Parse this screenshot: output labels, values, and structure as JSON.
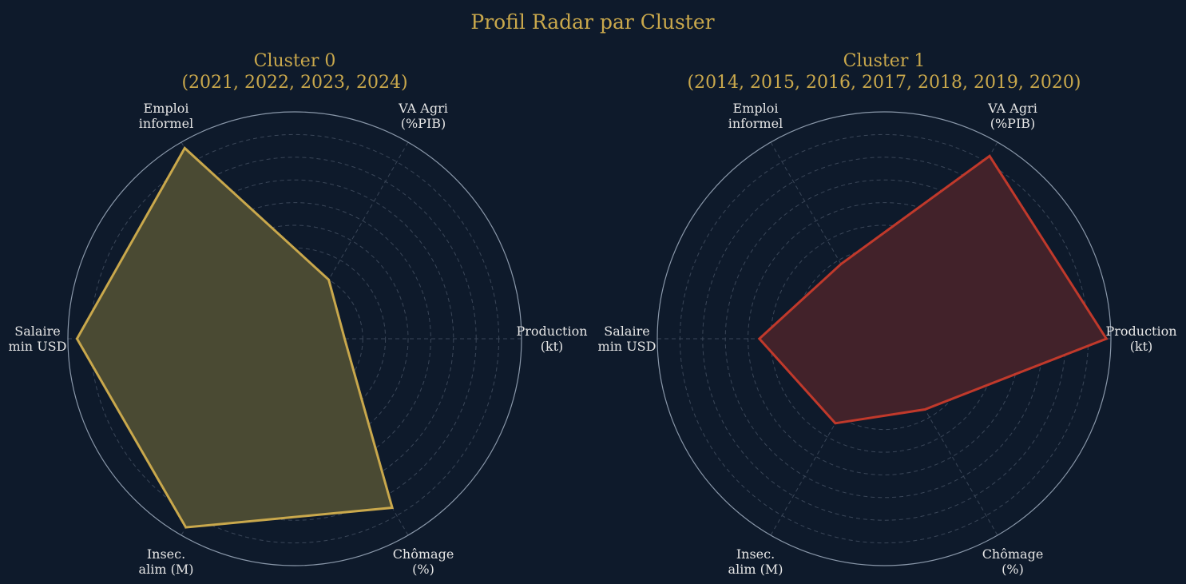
{
  "suptitle": "Profil Radar par Cluster",
  "chart_data": [
    {
      "type": "radar",
      "title_line1": "Cluster 0",
      "title_line2": "(2021, 2022, 2023, 2024)",
      "axes": [
        {
          "line1": "Production",
          "line2": "(kt)"
        },
        {
          "line1": "VA Agri",
          "line2": "(%PIB)"
        },
        {
          "line1": "Emploi",
          "line2": "informel"
        },
        {
          "line1": "Salaire",
          "line2": "min USD"
        },
        {
          "line1": "Insec.",
          "line2": "alim (M)"
        },
        {
          "line1": "Chômage",
          "line2": "(%)"
        }
      ],
      "values": [
        0.22,
        0.3,
        0.97,
        0.96,
        0.96,
        0.86
      ],
      "range": [
        0,
        1
      ],
      "grid_rings": 9,
      "grid": true,
      "color": "#c9a84c",
      "fill_color": "#4a4a33"
    },
    {
      "type": "radar",
      "title_line1": "Cluster 1",
      "title_line2": "(2014, 2015, 2016, 2017, 2018, 2019, 2020)",
      "axes": [
        {
          "line1": "Production",
          "line2": "(kt)"
        },
        {
          "line1": "VA Agri",
          "line2": "(%PIB)"
        },
        {
          "line1": "Emploi",
          "line2": "informel"
        },
        {
          "line1": "Salaire",
          "line2": "min USD"
        },
        {
          "line1": "Insec.",
          "line2": "alim (M)"
        },
        {
          "line1": "Chômage",
          "line2": "(%)"
        }
      ],
      "values": [
        0.98,
        0.93,
        0.38,
        0.55,
        0.43,
        0.36
      ],
      "range": [
        0,
        1
      ],
      "grid_rings": 9,
      "grid": true,
      "color": "#c0392b",
      "fill_color": "#42222a"
    }
  ]
}
